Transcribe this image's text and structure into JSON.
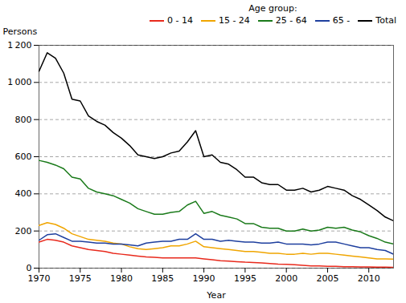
{
  "chart_data": {
    "type": "line",
    "xlabel": "Year",
    "ylabel": "Persons",
    "legend_title": "Age group:",
    "x": [
      1970,
      1971,
      1972,
      1973,
      1974,
      1975,
      1976,
      1977,
      1978,
      1979,
      1980,
      1981,
      1982,
      1983,
      1984,
      1985,
      1986,
      1987,
      1988,
      1989,
      1990,
      1991,
      1992,
      1993,
      1994,
      1995,
      1996,
      1997,
      1998,
      1999,
      2000,
      2001,
      2002,
      2003,
      2004,
      2005,
      2006,
      2007,
      2008,
      2009,
      2010,
      2011,
      2012,
      2013
    ],
    "series": [
      {
        "name": "0 - 14",
        "color": "#e8291c",
        "values": [
          140,
          155,
          150,
          140,
          120,
          110,
          100,
          95,
          90,
          80,
          75,
          70,
          65,
          60,
          58,
          55,
          55,
          55,
          55,
          55,
          50,
          45,
          40,
          38,
          35,
          32,
          30,
          28,
          25,
          22,
          20,
          18,
          15,
          12,
          12,
          10,
          10,
          8,
          8,
          7,
          6,
          5,
          5,
          4
        ]
      },
      {
        "name": "15 - 24",
        "color": "#f0a500",
        "values": [
          230,
          245,
          235,
          215,
          185,
          170,
          155,
          150,
          145,
          135,
          130,
          115,
          105,
          100,
          105,
          110,
          120,
          120,
          130,
          145,
          115,
          110,
          105,
          100,
          95,
          90,
          90,
          85,
          80,
          80,
          75,
          75,
          80,
          75,
          80,
          80,
          75,
          70,
          65,
          60,
          55,
          50,
          50,
          48
        ]
      },
      {
        "name": "25 - 64",
        "color": "#1a7a1a",
        "values": [
          580,
          570,
          555,
          535,
          490,
          480,
          430,
          410,
          400,
          390,
          370,
          350,
          320,
          305,
          290,
          290,
          300,
          305,
          340,
          360,
          295,
          305,
          285,
          275,
          265,
          240,
          240,
          220,
          215,
          215,
          200,
          200,
          210,
          200,
          205,
          220,
          215,
          220,
          205,
          195,
          175,
          160,
          140,
          130
        ]
      },
      {
        "name": "65 -",
        "color": "#1e3f9e",
        "values": [
          150,
          180,
          185,
          165,
          145,
          145,
          140,
          135,
          135,
          130,
          130,
          125,
          120,
          135,
          140,
          145,
          145,
          155,
          155,
          185,
          155,
          155,
          145,
          150,
          145,
          140,
          140,
          135,
          135,
          140,
          130,
          130,
          130,
          125,
          130,
          140,
          140,
          130,
          120,
          110,
          110,
          100,
          95,
          75
        ]
      },
      {
        "name": "Total",
        "color": "#000000",
        "values": [
          1060,
          1160,
          1130,
          1050,
          910,
          900,
          820,
          790,
          770,
          730,
          700,
          660,
          610,
          600,
          590,
          600,
          620,
          630,
          680,
          740,
          600,
          610,
          570,
          560,
          530,
          490,
          490,
          460,
          450,
          450,
          420,
          420,
          430,
          410,
          420,
          440,
          430,
          420,
          390,
          370,
          340,
          310,
          275,
          255
        ]
      }
    ],
    "xlim": [
      1970,
      2013
    ],
    "xticks": [
      1970,
      1975,
      1980,
      1985,
      1990,
      1995,
      2000,
      2005,
      2010
    ],
    "ylim": [
      0,
      1200
    ],
    "yticks": [
      0,
      200,
      400,
      600,
      800,
      {
        "value": 1000,
        "label": "1 000"
      },
      {
        "value": 1200,
        "label": "1 200"
      }
    ],
    "grid": "y",
    "legend": "upper right"
  }
}
